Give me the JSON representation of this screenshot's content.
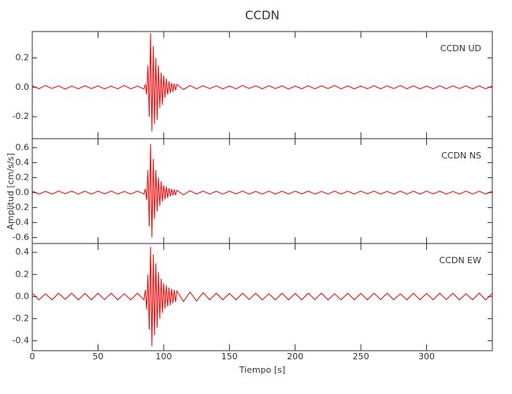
{
  "title": "CCDN",
  "xlabel": "Tiempo [s]",
  "ylabel": "Amplitud [cm/s/s]",
  "chart_data": [
    {
      "type": "line",
      "annotation": "CCDN   UD",
      "xlim": [
        0,
        350
      ],
      "xticks": [
        0,
        50,
        100,
        150,
        200,
        250,
        300
      ],
      "ylim": [
        -0.35,
        0.38
      ],
      "yticks": [
        -0.2,
        {
          "value": 0,
          "label": "0.0"
        },
        0.2
      ],
      "x": [
        0,
        5,
        10,
        15,
        20,
        25,
        30,
        35,
        40,
        45,
        50,
        55,
        60,
        65,
        70,
        75,
        80,
        85,
        86,
        87,
        88,
        89,
        90,
        91,
        92,
        93,
        94,
        95,
        96,
        97,
        98,
        99,
        100,
        101,
        102,
        103,
        104,
        105,
        106,
        107,
        108,
        109,
        110,
        115,
        120,
        125,
        130,
        135,
        140,
        145,
        150,
        155,
        160,
        165,
        170,
        175,
        180,
        185,
        190,
        195,
        200,
        205,
        210,
        215,
        220,
        225,
        230,
        235,
        240,
        245,
        250,
        255,
        260,
        265,
        270,
        275,
        280,
        285,
        290,
        295,
        300,
        305,
        310,
        315,
        320,
        325,
        330,
        335,
        340,
        345,
        350
      ],
      "series": [
        {
          "name": "UD",
          "color": "#ff0000",
          "values": [
            0.01,
            -0.01,
            0.012,
            -0.008,
            0.01,
            -0.012,
            0.009,
            -0.01,
            0.011,
            -0.009,
            0.01,
            -0.011,
            0.008,
            -0.01,
            0.012,
            -0.01,
            0.009,
            -0.012,
            0.02,
            -0.05,
            0.15,
            -0.2,
            0.37,
            -0.3,
            0.28,
            -0.25,
            0.2,
            -0.22,
            0.15,
            -0.14,
            0.1,
            -0.12,
            0.08,
            -0.07,
            0.06,
            -0.05,
            0.04,
            -0.04,
            0.03,
            -0.03,
            0.025,
            -0.02,
            0.02,
            -0.015,
            0.012,
            -0.01,
            0.011,
            -0.009,
            0.01,
            -0.011,
            0.009,
            -0.01,
            0.012,
            -0.008,
            0.01,
            -0.01,
            0.011,
            -0.009,
            0.01,
            -0.012,
            0.009,
            -0.01,
            0.011,
            -0.01,
            0.01,
            -0.009,
            0.012,
            -0.01,
            0.01,
            -0.011,
            0.009,
            -0.01,
            0.011,
            -0.01,
            0.01,
            -0.009,
            0.012,
            -0.01,
            0.01,
            -0.011,
            0.009,
            -0.01,
            0.011,
            -0.01,
            0.01,
            -0.009,
            0.01,
            -0.011,
            0.01,
            -0.01,
            0.009
          ]
        }
      ]
    },
    {
      "type": "line",
      "annotation": "CCDN   NS",
      "xlim": [
        0,
        350
      ],
      "xticks": [
        0,
        50,
        100,
        150,
        200,
        250,
        300
      ],
      "ylim": [
        -0.68,
        0.72
      ],
      "yticks": [
        -0.6,
        -0.4,
        -0.2,
        {
          "value": 0,
          "label": "0.0"
        },
        0.2,
        0.4,
        0.6
      ],
      "x": [
        0,
        5,
        10,
        15,
        20,
        25,
        30,
        35,
        40,
        45,
        50,
        55,
        60,
        65,
        70,
        75,
        80,
        85,
        86,
        87,
        88,
        89,
        90,
        91,
        92,
        93,
        94,
        95,
        96,
        97,
        98,
        99,
        100,
        101,
        102,
        103,
        104,
        105,
        106,
        107,
        108,
        109,
        110,
        115,
        120,
        125,
        130,
        135,
        140,
        145,
        150,
        155,
        160,
        165,
        170,
        175,
        180,
        185,
        190,
        195,
        200,
        205,
        210,
        215,
        220,
        225,
        230,
        235,
        240,
        245,
        250,
        255,
        260,
        265,
        270,
        275,
        280,
        285,
        290,
        295,
        300,
        305,
        310,
        315,
        320,
        325,
        330,
        335,
        340,
        345,
        350
      ],
      "series": [
        {
          "name": "NS",
          "color": "#ff0000",
          "values": [
            0.02,
            -0.02,
            0.015,
            -0.02,
            0.02,
            -0.015,
            0.02,
            -0.02,
            0.018,
            -0.02,
            0.02,
            -0.018,
            0.02,
            -0.02,
            0.015,
            -0.02,
            0.02,
            -0.02,
            0.05,
            -0.1,
            0.3,
            -0.45,
            0.65,
            -0.6,
            0.45,
            -0.35,
            0.3,
            -0.25,
            0.2,
            -0.18,
            0.15,
            -0.12,
            0.1,
            -0.09,
            0.08,
            -0.07,
            0.06,
            -0.05,
            0.05,
            -0.04,
            0.04,
            -0.035,
            0.03,
            -0.03,
            0.025,
            -0.02,
            0.02,
            -0.02,
            0.018,
            -0.02,
            0.02,
            -0.018,
            0.02,
            -0.02,
            0.015,
            -0.02,
            0.02,
            -0.02,
            0.018,
            -0.02,
            0.02,
            -0.018,
            0.02,
            -0.02,
            0.015,
            -0.02,
            0.02,
            -0.02,
            0.018,
            -0.02,
            0.02,
            -0.018,
            0.02,
            -0.02,
            0.015,
            -0.02,
            0.02,
            -0.02,
            0.018,
            -0.02,
            0.02,
            -0.018,
            0.02,
            -0.02,
            0.015,
            -0.02,
            0.02,
            -0.02,
            0.018,
            -0.02,
            0.02
          ]
        }
      ]
    },
    {
      "type": "line",
      "annotation": "CCDN   EW",
      "xlim": [
        0,
        350
      ],
      "xticks": [
        0,
        50,
        100,
        150,
        200,
        250,
        300
      ],
      "ylim": [
        -0.49,
        0.48
      ],
      "yticks": [
        -0.4,
        -0.2,
        {
          "value": 0,
          "label": "0.0"
        },
        0.2,
        0.4
      ],
      "x": [
        0,
        5,
        10,
        15,
        20,
        25,
        30,
        35,
        40,
        45,
        50,
        55,
        60,
        65,
        70,
        75,
        80,
        85,
        86,
        87,
        88,
        89,
        90,
        91,
        92,
        93,
        94,
        95,
        96,
        97,
        98,
        99,
        100,
        101,
        102,
        103,
        104,
        105,
        106,
        107,
        108,
        109,
        110,
        115,
        120,
        125,
        130,
        135,
        140,
        145,
        150,
        155,
        160,
        165,
        170,
        175,
        180,
        185,
        190,
        195,
        200,
        205,
        210,
        215,
        220,
        225,
        230,
        235,
        240,
        245,
        250,
        255,
        260,
        265,
        270,
        275,
        280,
        285,
        290,
        295,
        300,
        305,
        310,
        315,
        320,
        325,
        330,
        335,
        340,
        345,
        350
      ],
      "series": [
        {
          "name": "EW",
          "color": "#ff0000",
          "values": [
            0.03,
            -0.03,
            0.025,
            -0.03,
            0.03,
            -0.025,
            0.03,
            -0.03,
            0.028,
            -0.03,
            0.03,
            -0.028,
            0.03,
            -0.03,
            0.025,
            -0.03,
            0.03,
            -0.03,
            0.06,
            -0.12,
            0.2,
            -0.3,
            0.45,
            -0.45,
            0.38,
            -0.35,
            0.3,
            -0.28,
            0.22,
            -0.2,
            0.16,
            -0.15,
            0.12,
            -0.11,
            0.1,
            -0.09,
            0.08,
            -0.08,
            0.07,
            -0.06,
            0.06,
            -0.05,
            0.05,
            -0.045,
            0.04,
            -0.04,
            0.035,
            -0.03,
            0.03,
            -0.03,
            0.028,
            -0.03,
            0.03,
            -0.028,
            0.03,
            -0.03,
            0.025,
            -0.03,
            0.03,
            -0.03,
            0.028,
            -0.03,
            0.03,
            -0.028,
            0.03,
            -0.03,
            0.025,
            -0.03,
            0.03,
            -0.03,
            0.028,
            -0.03,
            0.03,
            -0.028,
            0.03,
            -0.03,
            0.025,
            -0.03,
            0.03,
            -0.03,
            0.028,
            -0.03,
            0.03,
            -0.028,
            0.03,
            -0.03,
            0.025,
            -0.03,
            0.03,
            -0.03,
            0.028
          ]
        }
      ]
    }
  ]
}
